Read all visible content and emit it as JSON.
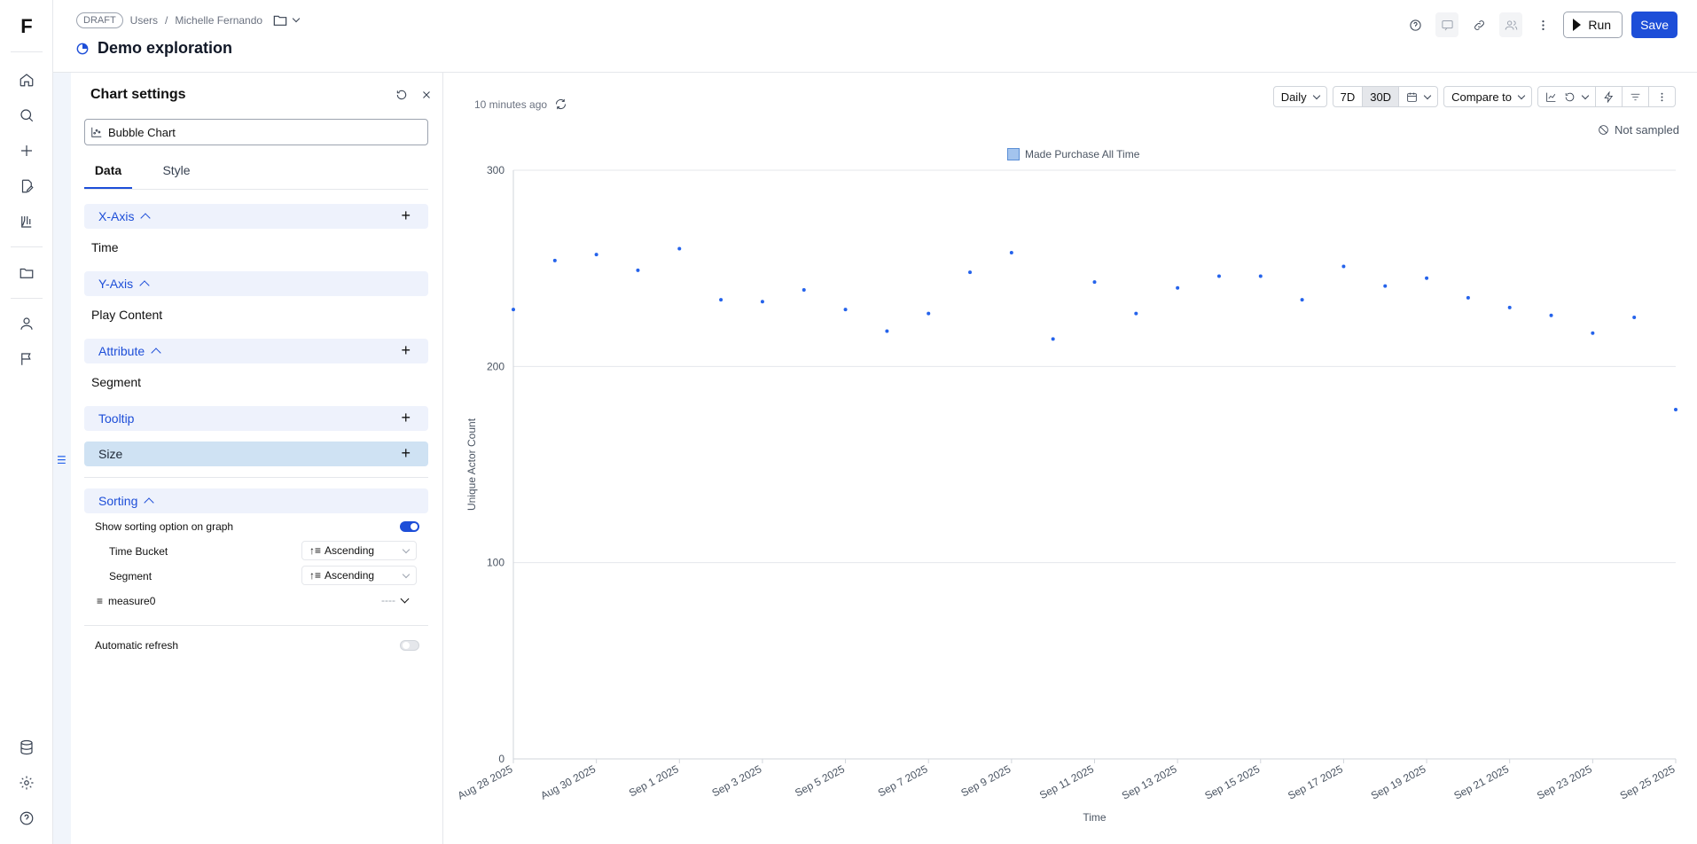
{
  "rail": {
    "logo": "F",
    "icons": [
      "home-icon",
      "search-icon",
      "plus-icon",
      "edit-document-icon",
      "lab-icon",
      "folder-icon",
      "user-icon",
      "flag-icon",
      "database-icon",
      "settings-icon",
      "help-icon"
    ]
  },
  "header": {
    "draft": "DRAFT",
    "breadcrumb": [
      "Users",
      "/",
      "Michelle Fernando"
    ],
    "title": "Demo exploration",
    "run_label": "Run",
    "save_label": "Save"
  },
  "panel": {
    "title": "Chart settings",
    "chart_type": "Bubble Chart",
    "tabs": [
      "Data",
      "Style"
    ],
    "sections": {
      "x_axis": {
        "label": "X-Axis",
        "value": "Time"
      },
      "y_axis": {
        "label": "Y-Axis",
        "value": "Play Content"
      },
      "attribute": {
        "label": "Attribute",
        "value": "Segment"
      },
      "tooltip": {
        "label": "Tooltip"
      },
      "size": {
        "label": "Size"
      },
      "sorting": {
        "label": "Sorting",
        "show_option": "Show sorting option on graph",
        "rows": [
          {
            "label": "Time Bucket",
            "order": "Ascending"
          },
          {
            "label": "Segment",
            "order": "Ascending"
          }
        ],
        "measure": "measure0",
        "measure_value": "----"
      }
    },
    "auto_refresh": "Automatic refresh"
  },
  "main": {
    "updated": "10 minutes ago",
    "granularity": "Daily",
    "range_7d": "7D",
    "range_30d": "30D",
    "compare": "Compare to",
    "not_sampled": "Not sampled"
  },
  "chart_data": {
    "type": "scatter",
    "series": [
      {
        "name": "Made Purchase All Time",
        "color": "#2563eb",
        "x": [
          "Aug 28 2025",
          "Aug 29 2025",
          "Aug 30 2025",
          "Aug 31 2025",
          "Sep 1 2025",
          "Sep 2 2025",
          "Sep 3 2025",
          "Sep 4 2025",
          "Sep 5 2025",
          "Sep 6 2025",
          "Sep 7 2025",
          "Sep 8 2025",
          "Sep 9 2025",
          "Sep 10 2025",
          "Sep 11 2025",
          "Sep 12 2025",
          "Sep 13 2025",
          "Sep 14 2025",
          "Sep 15 2025",
          "Sep 16 2025",
          "Sep 17 2025",
          "Sep 18 2025",
          "Sep 19 2025",
          "Sep 20 2025",
          "Sep 21 2025",
          "Sep 22 2025",
          "Sep 23 2025",
          "Sep 24 2025",
          "Sep 25 2025"
        ],
        "values": [
          229,
          254,
          257,
          249,
          260,
          234,
          233,
          239,
          229,
          218,
          227,
          248,
          258,
          214,
          243,
          227,
          240,
          246,
          246,
          234,
          251,
          241,
          245,
          235,
          230,
          226,
          217,
          225,
          178
        ]
      }
    ],
    "x_tick_labels": [
      "Aug 28 2025",
      "Aug 30 2025",
      "Sep 1 2025",
      "Sep 3 2025",
      "Sep 5 2025",
      "Sep 7 2025",
      "Sep 9 2025",
      "Sep 11 2025",
      "Sep 13 2025",
      "Sep 15 2025",
      "Sep 17 2025",
      "Sep 19 2025",
      "Sep 21 2025",
      "Sep 23 2025",
      "Sep 25 2025"
    ],
    "y_ticks": [
      "0",
      "100",
      "200",
      "300"
    ],
    "ylim": [
      0,
      300
    ],
    "xlabel": "Time",
    "ylabel": "Unique Actor Count",
    "grid": true,
    "legend": "top-center"
  }
}
